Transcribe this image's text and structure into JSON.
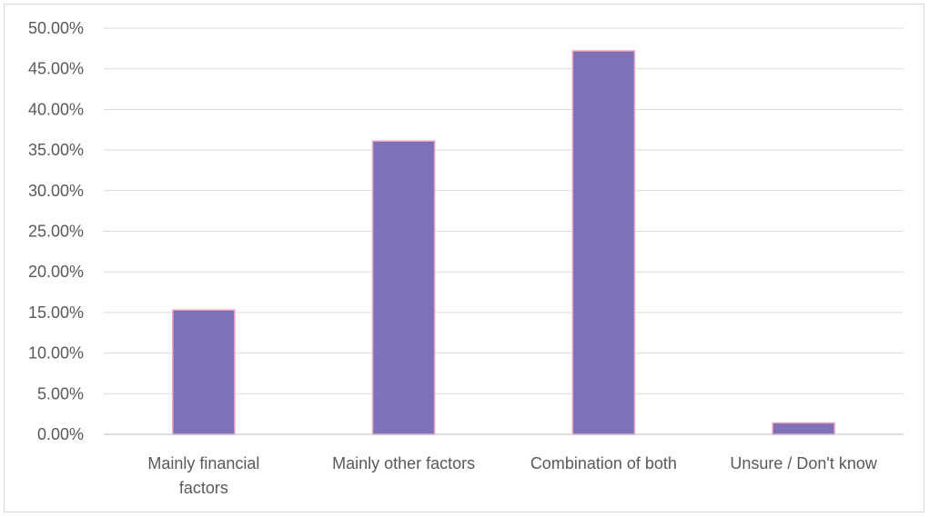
{
  "chart_data": {
    "type": "bar",
    "title": "",
    "xlabel": "",
    "ylabel": "",
    "categories": [
      [
        "Mainly financial",
        "factors"
      ],
      [
        "Mainly other factors"
      ],
      [
        "Combination of both"
      ],
      [
        "Unsure / Don't know"
      ]
    ],
    "values": [
      15.3,
      36.1,
      47.2,
      1.4
    ],
    "ylim": [
      0,
      50
    ],
    "ytick_step": 5,
    "yticks": [
      "0.00%",
      "5.00%",
      "10.00%",
      "15.00%",
      "20.00%",
      "25.00%",
      "30.00%",
      "35.00%",
      "40.00%",
      "45.00%",
      "50.00%"
    ],
    "grid": true,
    "legend": "none",
    "colors": {
      "bar_fill": "#7e71b7",
      "bar_stroke": "#f0a0c0",
      "grid": "#d9d9d9",
      "axis": "#bfbfbf",
      "text": "#595959"
    }
  }
}
